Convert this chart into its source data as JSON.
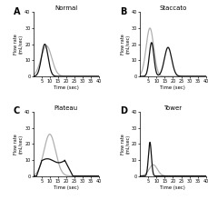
{
  "title_A": "Normal",
  "title_B": "Staccato",
  "title_C": "Plateau",
  "title_D": "Tower",
  "label_A": "A",
  "label_B": "B",
  "label_C": "C",
  "label_D": "D",
  "xlabel": "Time (sec)",
  "ylabel_A": "Flow rate\n(mL/sec)",
  "ylabel_B": "Flow rate\n(mL/sec)",
  "ylabel_C": "Flow rate\n(mL/sec)",
  "ylabel_D": "Flow rate\n(mL/sec)",
  "xlim": [
    0,
    40
  ],
  "ylim": [
    0,
    40
  ],
  "yticks": [
    0,
    10,
    20,
    30,
    40
  ],
  "xticks": [
    5,
    10,
    15,
    20,
    25,
    30,
    35,
    40
  ],
  "gray_color": "#b0b0b0",
  "black_color": "#111111",
  "bg_color": "#ffffff",
  "linewidth": 0.9
}
